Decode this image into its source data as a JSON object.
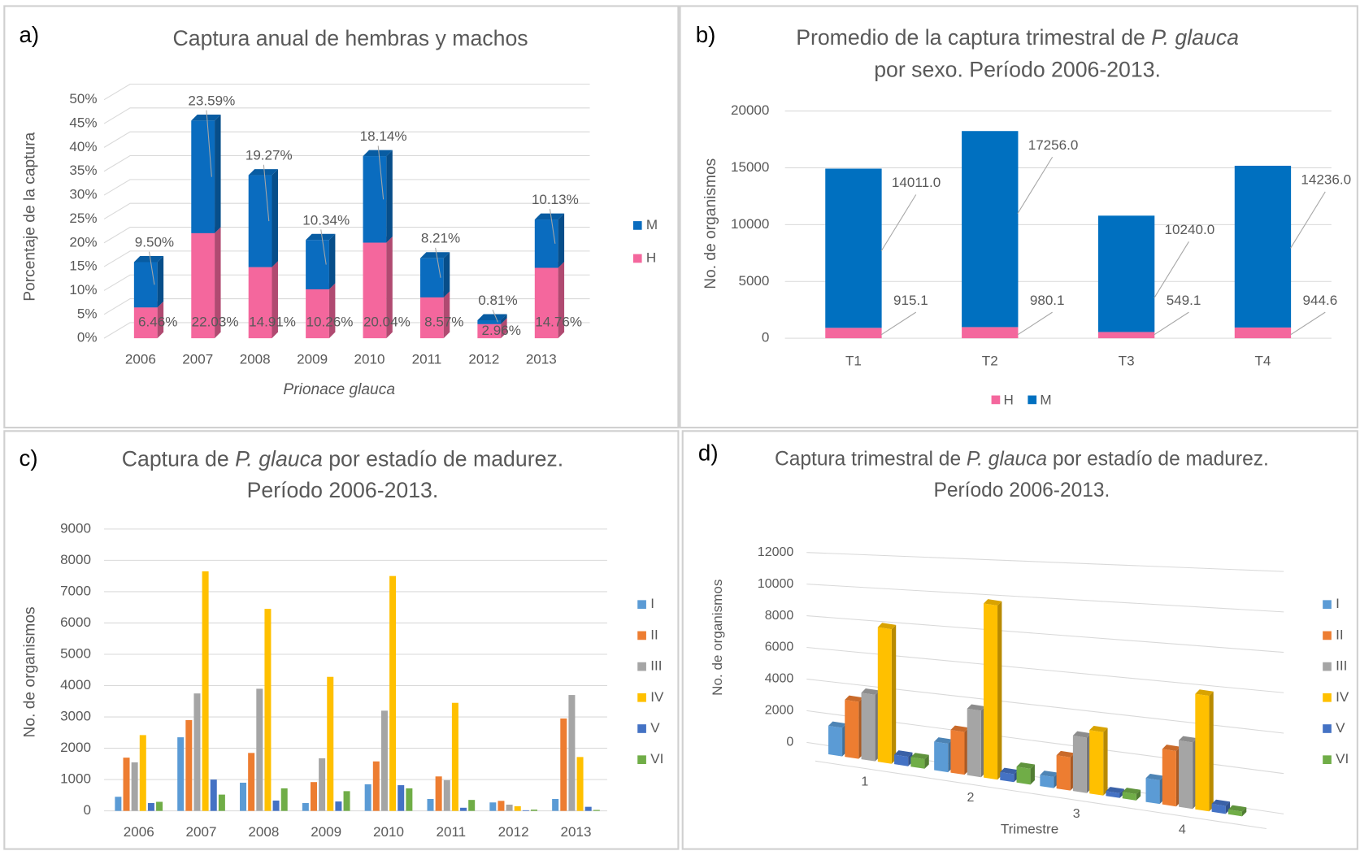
{
  "chart_data": [
    {
      "type": "bar3d_stacked",
      "panel_label": "a)",
      "title": "Captura anual de hembras y machos",
      "y_label": "Porcentaje de la captura",
      "x_label": "Prionace glauca",
      "categories": [
        "2006",
        "2007",
        "2008",
        "2009",
        "2010",
        "2011",
        "2012",
        "2013"
      ],
      "series": [
        {
          "name": "H",
          "color": "#f4679d",
          "values": [
            6.46,
            22.03,
            14.91,
            10.26,
            20.04,
            8.57,
            2.96,
            14.76
          ],
          "value_labels": [
            "6.46%",
            "22.03%",
            "14.91%",
            "10.26%",
            "20.04%",
            "8.57%",
            "2.96%",
            "14.76%"
          ]
        },
        {
          "name": "M",
          "color": "#0a6cbf",
          "values": [
            9.5,
            23.59,
            19.27,
            10.34,
            18.14,
            8.21,
            0.81,
            10.13
          ],
          "value_labels": [
            "9.50%",
            "23.59%",
            "19.27%",
            "10.34%",
            "18.14%",
            "8.21%",
            "0.81%",
            "10.13%"
          ]
        }
      ],
      "ylim": [
        0,
        50
      ],
      "yticks": [
        {
          "value": 0,
          "label": "0%"
        },
        {
          "value": 5,
          "label": "5%"
        },
        {
          "value": 10,
          "label": "10%"
        },
        {
          "value": 15,
          "label": "15%"
        },
        {
          "value": 20,
          "label": "20%"
        },
        {
          "value": 25,
          "label": "25%"
        },
        {
          "value": 30,
          "label": "30%"
        },
        {
          "value": 35,
          "label": "35%"
        },
        {
          "value": 40,
          "label": "40%"
        },
        {
          "value": 45,
          "label": "45%"
        },
        {
          "value": 50,
          "label": "50%"
        }
      ],
      "grid": true,
      "legend": "right"
    },
    {
      "type": "bar_stacked",
      "panel_label": "b)",
      "title": [
        "Promedio de la captura trimestral de",
        "P. glauca",
        "por sexo. Período 2006-2013."
      ],
      "y_label": "No. de organismos",
      "categories": [
        "T1",
        "T2",
        "T3",
        "T4"
      ],
      "series": [
        {
          "name": "H",
          "color": "#f4679d",
          "values": [
            915.1,
            980.1,
            549.1,
            944.6
          ]
        },
        {
          "name": "M",
          "color": "#0070c0",
          "values": [
            14011.0,
            17256.0,
            10240.0,
            14236.0
          ],
          "value_labels": [
            "14011.0",
            "17256.0",
            "10240.0",
            "14236.0"
          ]
        }
      ],
      "ylim": [
        0,
        20000
      ],
      "yticks": [
        0,
        5000,
        10000,
        15000,
        20000
      ],
      "grid": true,
      "legend": "bottom"
    },
    {
      "type": "bar_grouped",
      "panel_label": "c)",
      "title": [
        "Captura de",
        "P. glauca",
        "por estadío de madurez.",
        "Período 2006-2013."
      ],
      "y_label": "No. de organismos",
      "categories": [
        "2006",
        "2007",
        "2008",
        "2009",
        "2010",
        "2011",
        "2012",
        "2013"
      ],
      "series": [
        {
          "name": "I",
          "color": "#5b9bd5",
          "values": [
            450,
            2350,
            900,
            250,
            850,
            380,
            270,
            380
          ]
        },
        {
          "name": "II",
          "color": "#ed7d31",
          "values": [
            1700,
            2900,
            1850,
            920,
            1580,
            1100,
            320,
            2950
          ]
        },
        {
          "name": "III",
          "color": "#a5a5a5",
          "values": [
            1550,
            3750,
            3900,
            1680,
            3200,
            980,
            200,
            3700
          ]
        },
        {
          "name": "IV",
          "color": "#ffc000",
          "values": [
            2420,
            7650,
            6450,
            4280,
            7500,
            3450,
            150,
            1720
          ]
        },
        {
          "name": "V",
          "color": "#4472c4",
          "values": [
            250,
            1000,
            330,
            300,
            820,
            100,
            20,
            130
          ]
        },
        {
          "name": "VI",
          "color": "#70ad47",
          "values": [
            290,
            520,
            720,
            630,
            720,
            350,
            40,
            30
          ]
        }
      ],
      "ylim": [
        0,
        9000
      ],
      "yticks": [
        0,
        1000,
        2000,
        3000,
        4000,
        5000,
        6000,
        7000,
        8000,
        9000
      ],
      "grid": true,
      "legend": "right"
    },
    {
      "type": "bar3d_grouped",
      "panel_label": "d)",
      "title": [
        "Captura trimestral de",
        "P. glauca",
        "por estadío de madurez.",
        "Período 2006-2013."
      ],
      "y_label": "No. de organismos",
      "x_label": "Trimestre",
      "categories": [
        "1",
        "2",
        "3",
        "4"
      ],
      "series": [
        {
          "name": "I",
          "color": "#5b9bd5",
          "values": [
            1800,
            1800,
            700,
            1500
          ]
        },
        {
          "name": "II",
          "color": "#ed7d31",
          "values": [
            3600,
            2700,
            2100,
            3500
          ]
        },
        {
          "name": "III",
          "color": "#a5a5a5",
          "values": [
            4200,
            4200,
            3500,
            4200
          ]
        },
        {
          "name": "IV",
          "color": "#ffc000",
          "values": [
            8500,
            11000,
            4000,
            7300
          ]
        },
        {
          "name": "V",
          "color": "#4472c4",
          "values": [
            600,
            500,
            300,
            500
          ]
        },
        {
          "name": "VI",
          "color": "#70ad47",
          "values": [
            600,
            1000,
            400,
            300
          ]
        }
      ],
      "ylim": [
        0,
        12000
      ],
      "yticks": [
        0,
        2000,
        4000,
        6000,
        8000,
        10000,
        12000
      ],
      "grid": true,
      "legend": "right"
    }
  ]
}
